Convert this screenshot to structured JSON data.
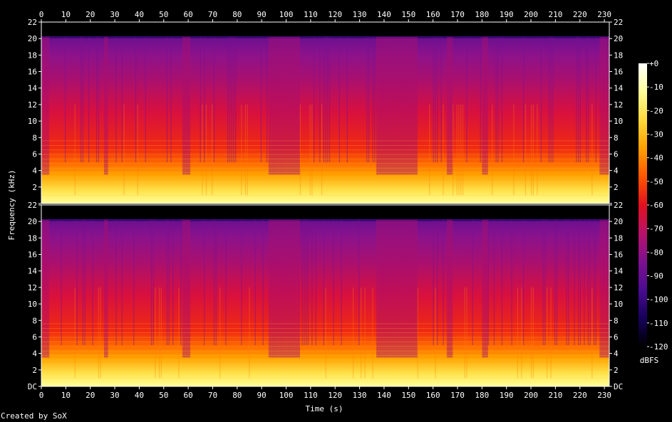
{
  "chart_data": {
    "type": "heatmap",
    "xlabel": "Time (s)",
    "ylabel": "Frequency (kHz)",
    "xlim": [
      0,
      232
    ],
    "ylim": [
      0,
      22
    ],
    "x_ticks": [
      0,
      10,
      20,
      30,
      40,
      50,
      60,
      70,
      80,
      90,
      100,
      110,
      120,
      130,
      140,
      150,
      160,
      170,
      180,
      190,
      200,
      210,
      220,
      230
    ],
    "y_ticks": [
      {
        "value": 0,
        "label": "DC"
      },
      {
        "value": 2,
        "label": "2"
      },
      {
        "value": 4,
        "label": "4"
      },
      {
        "value": 6,
        "label": "6"
      },
      {
        "value": 8,
        "label": "8"
      },
      {
        "value": 10,
        "label": "10"
      },
      {
        "value": 12,
        "label": "12"
      },
      {
        "value": 14,
        "label": "14"
      },
      {
        "value": 16,
        "label": "16"
      },
      {
        "value": 18,
        "label": "18"
      },
      {
        "value": 20,
        "label": "20"
      },
      {
        "value": 22,
        "label": "22"
      }
    ],
    "channels": 2,
    "content_cutoff_khz": 20.2,
    "colorbar": {
      "unit": "dBFS",
      "range": [
        -120,
        0
      ],
      "ticks": [
        "+0",
        "-10",
        "-20",
        "-30",
        "-40",
        "-50",
        "-60",
        "-70",
        "-80",
        "-90",
        "-100",
        "-110",
        "-120"
      ],
      "colors": [
        "#000000",
        "#16005a",
        "#4a0c92",
        "#7e1090",
        "#b8126a",
        "#e2101e",
        "#ff5500",
        "#ffa000",
        "#ffd83a",
        "#ffff9a",
        "#ffffff"
      ]
    },
    "quiet_time_ranges_s": [
      [
        0,
        3
      ],
      [
        25,
        27
      ],
      [
        57,
        60
      ],
      [
        92,
        105
      ],
      [
        136,
        153
      ],
      [
        165,
        168
      ],
      [
        180,
        182
      ],
      [
        228,
        232
      ]
    ]
  },
  "footer": {
    "credit": "Created by SoX"
  }
}
